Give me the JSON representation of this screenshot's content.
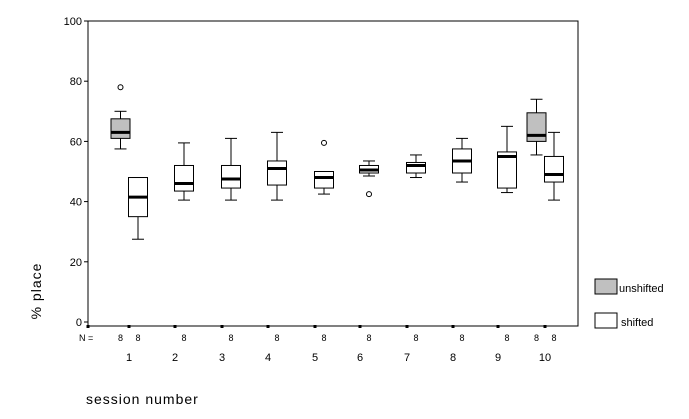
{
  "chart_data": {
    "type": "boxplot",
    "xlabel": "session number",
    "ylabel": "% place",
    "ylim": [
      0,
      100
    ],
    "yticks": [
      0,
      20,
      40,
      60,
      80,
      100
    ],
    "n_label": "N =",
    "categories": [
      "1",
      "2",
      "3",
      "4",
      "5",
      "6",
      "7",
      "8",
      "9",
      "10"
    ],
    "grid": false,
    "legend_position": "bottom-right",
    "series": [
      {
        "name": "unshifted",
        "color": "#c0c0c0",
        "boxes": [
          {
            "category": "1",
            "n": 8,
            "min": 57.5,
            "q1": 61,
            "median": 63,
            "q3": 67.5,
            "max": 70,
            "outliers": [
              78
            ]
          },
          {
            "category": "10",
            "n": 8,
            "min": 55.5,
            "q1": 60,
            "median": 62,
            "q3": 69.5,
            "max": 74,
            "outliers": []
          }
        ]
      },
      {
        "name": "shifted",
        "color": "#ffffff",
        "boxes": [
          {
            "category": "1",
            "n": 8,
            "min": 27.5,
            "q1": 35,
            "median": 41.5,
            "q3": 48,
            "max": 48,
            "outliers": []
          },
          {
            "category": "2",
            "n": 8,
            "min": 40.5,
            "q1": 43.5,
            "median": 46,
            "q3": 52,
            "max": 59.5,
            "outliers": []
          },
          {
            "category": "3",
            "n": 8,
            "min": 40.5,
            "q1": 44.5,
            "median": 47.5,
            "q3": 52,
            "max": 61,
            "outliers": []
          },
          {
            "category": "4",
            "n": 8,
            "min": 40.5,
            "q1": 45.5,
            "median": 51,
            "q3": 53.5,
            "max": 63,
            "outliers": []
          },
          {
            "category": "5",
            "n": 8,
            "min": 42.5,
            "q1": 44.5,
            "median": 48,
            "q3": 50,
            "max": 50,
            "outliers": [
              59.5
            ]
          },
          {
            "category": "6",
            "n": 8,
            "min": 48.5,
            "q1": 49.5,
            "median": 50.5,
            "q3": 52,
            "max": 53.5,
            "outliers": [
              42.5
            ]
          },
          {
            "category": "7",
            "n": 8,
            "min": 48,
            "q1": 49.5,
            "median": 52,
            "q3": 53,
            "max": 55.5,
            "outliers": []
          },
          {
            "category": "8",
            "n": 8,
            "min": 46.5,
            "q1": 49.5,
            "median": 53.5,
            "q3": 57.5,
            "max": 61,
            "outliers": []
          },
          {
            "category": "9",
            "n": 8,
            "min": 43,
            "q1": 44.5,
            "median": 55,
            "q3": 56.5,
            "max": 65,
            "outliers": []
          },
          {
            "category": "10",
            "n": 8,
            "min": 40.5,
            "q1": 46.5,
            "median": 49,
            "q3": 55,
            "max": 63,
            "outliers": []
          }
        ]
      }
    ]
  }
}
